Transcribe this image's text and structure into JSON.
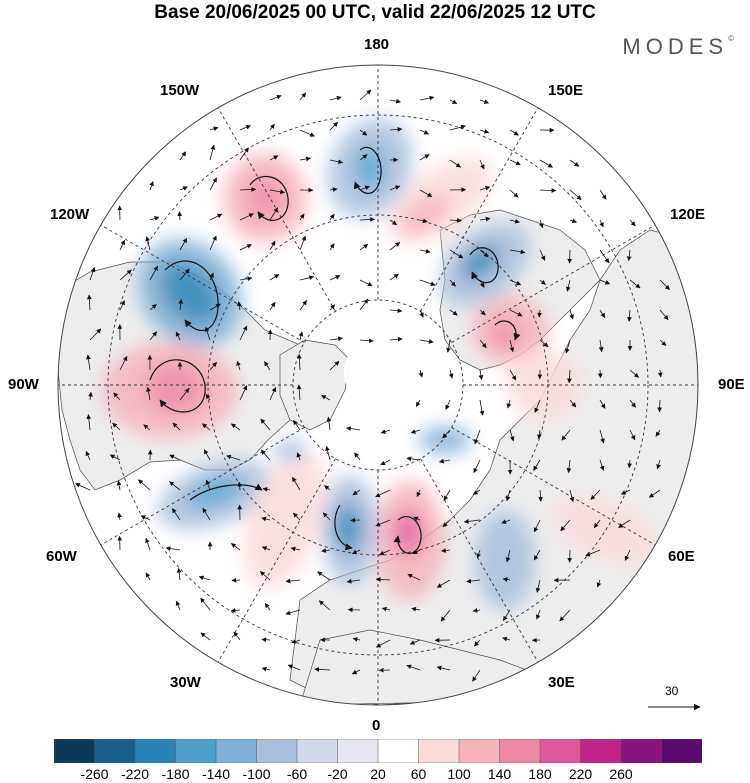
{
  "title": "Base 20/06/2025 00 UTC, valid 22/06/2025 12 UTC",
  "brand": "MODES",
  "brand_mark": "©",
  "longitude_labels": {
    "top": "180",
    "bottom": "0",
    "left": "90W",
    "right": "90E",
    "upper_left_1": "150W",
    "upper_left_2": "120W",
    "lower_left_1": "60W",
    "lower_left_2": "30W",
    "upper_right_1": "150E",
    "upper_right_2": "120E",
    "lower_right_1": "60E",
    "lower_right_2": "30E"
  },
  "reference_vector": {
    "label": "30",
    "icon": "arrow-right-icon"
  },
  "colorbar": {
    "labels": [
      "-260",
      "-220",
      "-180",
      "-140",
      "-100",
      "-60",
      "-20",
      "20",
      "60",
      "100",
      "140",
      "180",
      "220",
      "260"
    ],
    "colors": [
      "#0d3a58",
      "#17618f",
      "#2883b8",
      "#4ba0cc",
      "#7fb0d5",
      "#a9bfdd",
      "#d3d8eb",
      "#e6e6f2",
      "#ffffff",
      "#fbdada",
      "#f5b3bc",
      "#ef86a6",
      "#e0569a",
      "#c2248a",
      "#8c1280",
      "#5a0a6e"
    ]
  },
  "colors": {
    "land": "#ededed",
    "ocean": "#ffffff",
    "coast": "#4a4a4a",
    "grid": "#333333"
  }
}
